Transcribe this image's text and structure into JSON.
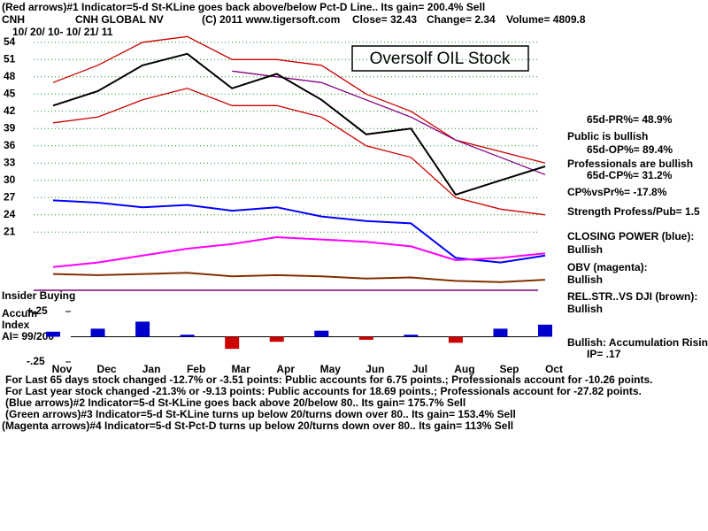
{
  "header": {
    "indicator": "(Red arrows)#1 Indicator=5-d St-KLine goes back above/below Pct-D Line.. Its gain= 200.4% Sell",
    "ticker": "CNH",
    "company": "CNH GLOBAL NV",
    "site": "(C) 2011 www.tigersoft.com",
    "close": "Close=  32.43",
    "change": "Change= 2.34",
    "volume": "Volume= 4809.8",
    "dates": "10/ 20/ 10- 10/ 21/ 11"
  },
  "chart_data": [
    {
      "type": "line",
      "title": "Oversolf OIL Stock",
      "categories": [
        "Nov",
        "Dec",
        "Jan",
        "Feb",
        "Mar",
        "Apr",
        "May",
        "Jun",
        "Jul",
        "Aug",
        "Sep",
        "Oct"
      ],
      "series": [
        {
          "color": "#cc0000",
          "values": [
            47,
            50,
            54,
            55,
            51,
            51,
            50,
            45,
            42,
            37,
            35,
            33
          ]
        },
        {
          "color": "#cc0000",
          "values": [
            40,
            41,
            44,
            46,
            43,
            43,
            41,
            36,
            34,
            27,
            25,
            24
          ]
        },
        {
          "color": "#800080",
          "values": [
            null,
            null,
            null,
            null,
            49,
            48,
            47,
            44,
            41,
            37,
            34,
            31
          ]
        },
        {
          "color": "#000000",
          "values": [
            43,
            45.5,
            50,
            52,
            46,
            48.5,
            44,
            38,
            39,
            27.5,
            30,
            32.43
          ]
        }
      ],
      "ylim": [
        19.5,
        55.5
      ],
      "yticks": [
        21,
        24,
        27,
        30,
        33,
        36,
        39,
        42,
        45,
        48,
        51,
        54
      ],
      "grid": true
    },
    {
      "type": "line",
      "series": [
        {
          "color": "#0000ff",
          "values": [
            72,
            70,
            66,
            68,
            63,
            66,
            58,
            54,
            52,
            22,
            18,
            24
          ]
        },
        {
          "color": "#ff00ff",
          "values": [
            14,
            18,
            24,
            30,
            34,
            40,
            38,
            36,
            32,
            20,
            22,
            26
          ]
        },
        {
          "color": "#803000",
          "values": [
            8,
            7,
            8,
            9,
            6,
            7,
            6,
            4,
            5,
            2,
            1,
            3
          ]
        }
      ],
      "ylim": [
        0,
        100
      ]
    },
    {
      "type": "bar",
      "title": "Insider Buying",
      "label": [
        "Accum",
        "Index"
      ],
      "annotation": "AI= 99/200",
      "values": [
        0.05,
        0.08,
        0.15,
        0.02,
        -0.12,
        -0.05,
        0.06,
        -0.03,
        0.02,
        -0.06,
        0.08,
        0.12
      ],
      "colors": {
        "positive": "#0000cc",
        "negative": "#cc0000"
      },
      "ylim": [
        -0.28,
        0.28
      ],
      "yticks": [
        {
          "value": 0.25,
          "label": "+.25"
        },
        {
          "value": -0.25,
          "label": "-.25"
        }
      ]
    }
  ],
  "side_panel": [
    "65d-PR%= 48.9%",
    "Public is bullish",
    "65d-OP%= 89.4%",
    "Professionals are bullish",
    "65d-CP%= 31.2%",
    "CP%vsPr%= -17.8%",
    "Strength Profess/Pub= 1.5",
    "CLOSING POWER (blue):",
    "Bullish",
    "OBV (magenta):",
    "Bullish",
    "REL.STR..VS DJI (brown):",
    "Bullish",
    "Bullish: Accumulation Rising",
    "IP=  .17"
  ],
  "footer": [
    "For Last 65 days stock changed -12.7% or -3.51 points:  Public accounts for  6.75 points.;  Professionals account for -10.26 points.",
    "For Last year stock changed -21.3% or -9.13 points:  Public accounts for  18.69 points.;  Professionals account for -27.82 points.",
    "(Blue arrows)#2 Indicator=5-d St-KLine goes back above 20/below 80.. Its gain= 175.7% Sell",
    "(Green arrows)#3 Indicator=5-d St-KLine turns up below 20/turns down over 80.. Its gain= 153.4% Sell",
    "(Magenta arrows)#4 Indicator=5-d St-Pct-D turns up below 20/turns down over 80.. Its gain= 113% Sell"
  ]
}
